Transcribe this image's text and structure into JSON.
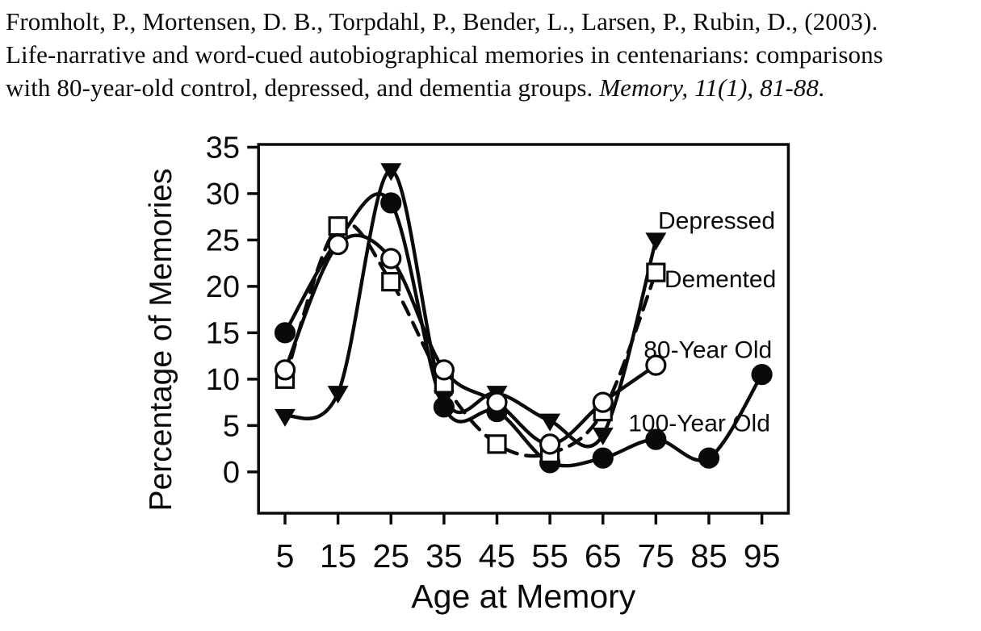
{
  "page": {
    "background": "#ffffff",
    "ink_color": "#0a0a0a"
  },
  "citation": {
    "line1": "Fromholt, P., Mortensen, D. B., Torpdahl, P., Bender, L., Larsen, P., Rubin, D., (2003).",
    "line2": "Life-narrative and word-cued autobiographical memories in centenarians: comparisons",
    "line3_normal": "with 80-year-old control, depressed, and dementia groups. ",
    "line3_italic": "Memory, 11(1), 81-88."
  },
  "chart_data": {
    "type": "line",
    "title": "",
    "xlabel": "Age at Memory",
    "ylabel": "Percentage of Memories",
    "x_ticks": [
      5,
      15,
      25,
      35,
      45,
      55,
      65,
      75,
      85,
      95
    ],
    "y_ticks": [
      0,
      5,
      10,
      15,
      20,
      25,
      30,
      35
    ],
    "xlim": [
      0,
      100
    ],
    "ylim": [
      -4.45,
      35.3
    ],
    "grid": false,
    "frame": true,
    "legend_position": "inline-right-of-curves",
    "line_color": "#0a0a0a",
    "background": "#ffffff",
    "series": [
      {
        "name": "Depressed",
        "marker": "triangle-down",
        "marker_fill": "filled",
        "line_style": "solid",
        "x": [
          5,
          15,
          25,
          35,
          45,
          55,
          65,
          75
        ],
        "values": [
          6,
          8.5,
          32.5,
          8,
          8.5,
          5.5,
          4,
          25
        ]
      },
      {
        "name": "100-Year Old",
        "marker": "circle",
        "marker_fill": "filled",
        "line_style": "solid",
        "x": [
          5,
          15,
          25,
          35,
          45,
          55,
          65,
          75,
          85,
          95
        ],
        "values": [
          15,
          25,
          29,
          7,
          6.5,
          1,
          1.5,
          3.5,
          1.5,
          10.5
        ],
        "hidden_markers": [
          15
        ]
      },
      {
        "name": "Demented",
        "marker": "square",
        "marker_fill": "open",
        "line_style": "dashed",
        "x": [
          5,
          15,
          25,
          35,
          45,
          55,
          65,
          75
        ],
        "values": [
          10,
          26.5,
          20.5,
          9.5,
          3,
          2,
          6.5,
          21.5
        ]
      },
      {
        "name": "80-Year Old",
        "marker": "circle",
        "marker_fill": "open",
        "line_style": "solid",
        "x": [
          5,
          15,
          25,
          35,
          45,
          55,
          65,
          75
        ],
        "values": [
          11,
          24.5,
          23,
          11,
          7.5,
          3,
          7.5,
          11.5
        ]
      }
    ],
    "annotations": [
      {
        "text": "Depressed",
        "x": 75.4,
        "y": 26.2
      },
      {
        "text": "Demented",
        "x": 76.6,
        "y": 19.9
      },
      {
        "text": "80-Year Old",
        "x": 72.7,
        "y": 12.3
      },
      {
        "text": "100-Year Old",
        "x": 69.8,
        "y": 4.4
      }
    ]
  }
}
